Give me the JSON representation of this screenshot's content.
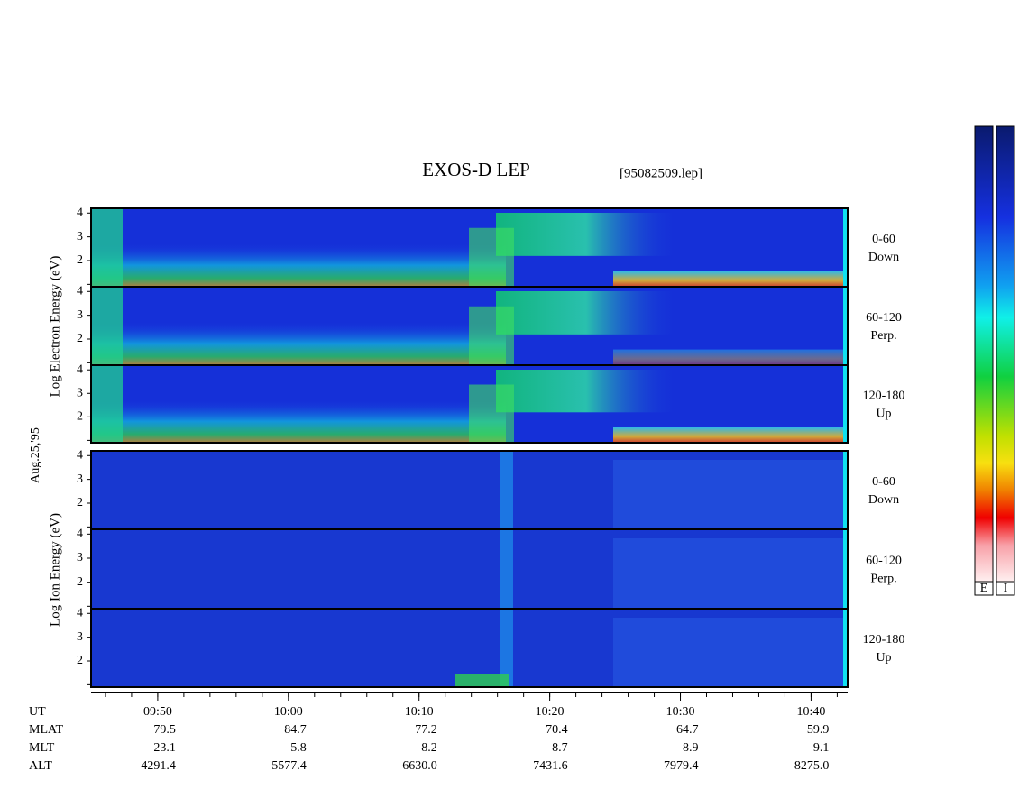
{
  "chart_data": {
    "type": "spectrogram",
    "title": "EXOS-D LEP",
    "file_label": "[95082509.lep]",
    "date_label": "Aug.25,'95",
    "electron_axis_label": "Log  Electron  Energy (eV)",
    "ion_axis_label": "Log  Ion  Energy (eV)",
    "ylim": [
      0.9,
      4.2
    ],
    "yticks": [
      2,
      3,
      4
    ],
    "minor_yticks": [
      1
    ],
    "xlim": [
      584.9,
      642.8
    ],
    "xticks": [
      {
        "value": 590,
        "label": "09:50"
      },
      {
        "value": 600,
        "label": "10:00"
      },
      {
        "value": 610,
        "label": "10:10"
      },
      {
        "value": 620,
        "label": "10:20"
      },
      {
        "value": 630,
        "label": "10:30"
      },
      {
        "value": 640,
        "label": "10:40"
      }
    ],
    "minor_xtick_step": 2,
    "electron_panels": [
      {
        "range": "0-60",
        "direction": "Down"
      },
      {
        "range": "60-120",
        "direction": "Perp."
      },
      {
        "range": "120-180",
        "direction": "Up"
      }
    ],
    "ion_panels": [
      {
        "range": "0-60",
        "direction": "Down"
      },
      {
        "range": "60-120",
        "direction": "Perp."
      },
      {
        "range": "120-180",
        "direction": "Up"
      }
    ],
    "footer_rows": [
      {
        "label": "UT"
      },
      {
        "label": "MLAT",
        "values": [
          "79.5",
          "84.7",
          "77.2",
          "70.4",
          "64.7",
          "59.9"
        ]
      },
      {
        "label": "MLT",
        "values": [
          "23.1",
          "5.8",
          "8.2",
          "8.7",
          "8.9",
          "9.1"
        ]
      },
      {
        "label": "ALT",
        "values": [
          "4291.4",
          "5577.4",
          "6630.0",
          "7431.6",
          "7979.4",
          "8275.0"
        ]
      }
    ],
    "colorbars": [
      "E",
      "I"
    ]
  }
}
